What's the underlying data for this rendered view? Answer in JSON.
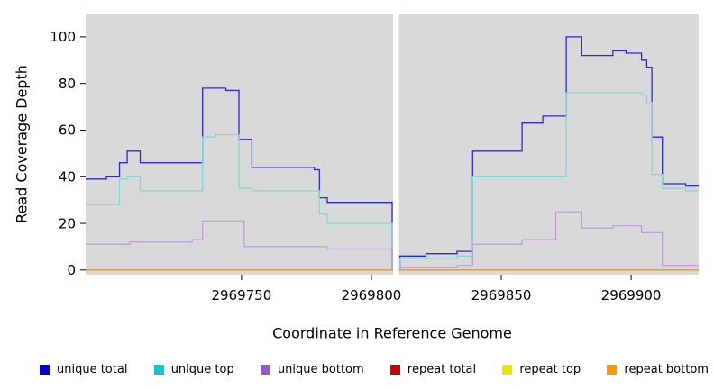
{
  "chart_data": {
    "type": "line",
    "interpolation": "step-after",
    "title": "",
    "xlabel": "Coordinate in Reference Genome",
    "ylabel": "Read Coverage Depth",
    "xlim": [
      2969690,
      2969926
    ],
    "ylim": [
      -2,
      110
    ],
    "xticks": [
      2969750,
      2969800,
      2969850,
      2969900
    ],
    "yticks": [
      0,
      20,
      40,
      60,
      80,
      100
    ],
    "grid": false,
    "legend_position": "bottom",
    "plot_background": "#d9d9d9",
    "page_background": "#ffffff",
    "gap_band": {
      "x_from": 2969808.4,
      "x_to": 2969810.6,
      "color": "#ffffff"
    },
    "x_end": 2969926,
    "series": [
      {
        "name": "unique total",
        "color": "#2a2ad0",
        "steps": [
          [
            2969690,
            39
          ],
          [
            2969698,
            40
          ],
          [
            2969703,
            46
          ],
          [
            2969706,
            51
          ],
          [
            2969711,
            46
          ],
          [
            2969735,
            78
          ],
          [
            2969744,
            77
          ],
          [
            2969749,
            56
          ],
          [
            2969754,
            44
          ],
          [
            2969778,
            43
          ],
          [
            2969780,
            31
          ],
          [
            2969783,
            29
          ],
          [
            2969808,
            0
          ],
          [
            2969811,
            6
          ],
          [
            2969821,
            7
          ],
          [
            2969833,
            8
          ],
          [
            2969839,
            51
          ],
          [
            2969858,
            63
          ],
          [
            2969866,
            66
          ],
          [
            2969875,
            100
          ],
          [
            2969881,
            92
          ],
          [
            2969893,
            94
          ],
          [
            2969898,
            93
          ],
          [
            2969904,
            90
          ],
          [
            2969906,
            87
          ],
          [
            2969908,
            57
          ],
          [
            2969912,
            37
          ],
          [
            2969921,
            36
          ]
        ]
      },
      {
        "name": "unique top",
        "color": "#85d8d8",
        "steps": [
          [
            2969690,
            28
          ],
          [
            2969703,
            39
          ],
          [
            2969706,
            40
          ],
          [
            2969711,
            34
          ],
          [
            2969735,
            57
          ],
          [
            2969740,
            58
          ],
          [
            2969749,
            35
          ],
          [
            2969754,
            34
          ],
          [
            2969780,
            24
          ],
          [
            2969783,
            20
          ],
          [
            2969808,
            0
          ],
          [
            2969811,
            5
          ],
          [
            2969833,
            6
          ],
          [
            2969839,
            40
          ],
          [
            2969875,
            76
          ],
          [
            2969904,
            75
          ],
          [
            2969906,
            72
          ],
          [
            2969908,
            41
          ],
          [
            2969912,
            35
          ],
          [
            2969921,
            34
          ]
        ]
      },
      {
        "name": "unique bottom",
        "color": "#c09fda",
        "steps": [
          [
            2969690,
            11
          ],
          [
            2969707,
            12
          ],
          [
            2969731,
            13
          ],
          [
            2969735,
            21
          ],
          [
            2969751,
            10
          ],
          [
            2969783,
            9
          ],
          [
            2969808,
            0
          ],
          [
            2969811,
            1
          ],
          [
            2969833,
            2
          ],
          [
            2969839,
            11
          ],
          [
            2969858,
            13
          ],
          [
            2969871,
            25
          ],
          [
            2969881,
            18
          ],
          [
            2969893,
            19
          ],
          [
            2969904,
            16
          ],
          [
            2969912,
            2
          ]
        ]
      },
      {
        "name": "repeat total",
        "color": "#d02a2a",
        "steps": [
          [
            2969690,
            0
          ]
        ]
      },
      {
        "name": "repeat top",
        "color": "#efef2a",
        "steps": [
          [
            2969690,
            0
          ]
        ]
      },
      {
        "name": "repeat bottom",
        "color": "#ff9000",
        "steps": [
          [
            2969690,
            0
          ]
        ]
      }
    ],
    "legend": [
      {
        "label": "unique total",
        "color": "#0000cd"
      },
      {
        "label": "unique top",
        "color": "#00cdcd"
      },
      {
        "label": "unique bottom",
        "color": "#9955cc"
      },
      {
        "label": "repeat total",
        "color": "#cd0000"
      },
      {
        "label": "repeat top",
        "color": "#e6e600"
      },
      {
        "label": "repeat bottom",
        "color": "#ff9900"
      }
    ]
  }
}
